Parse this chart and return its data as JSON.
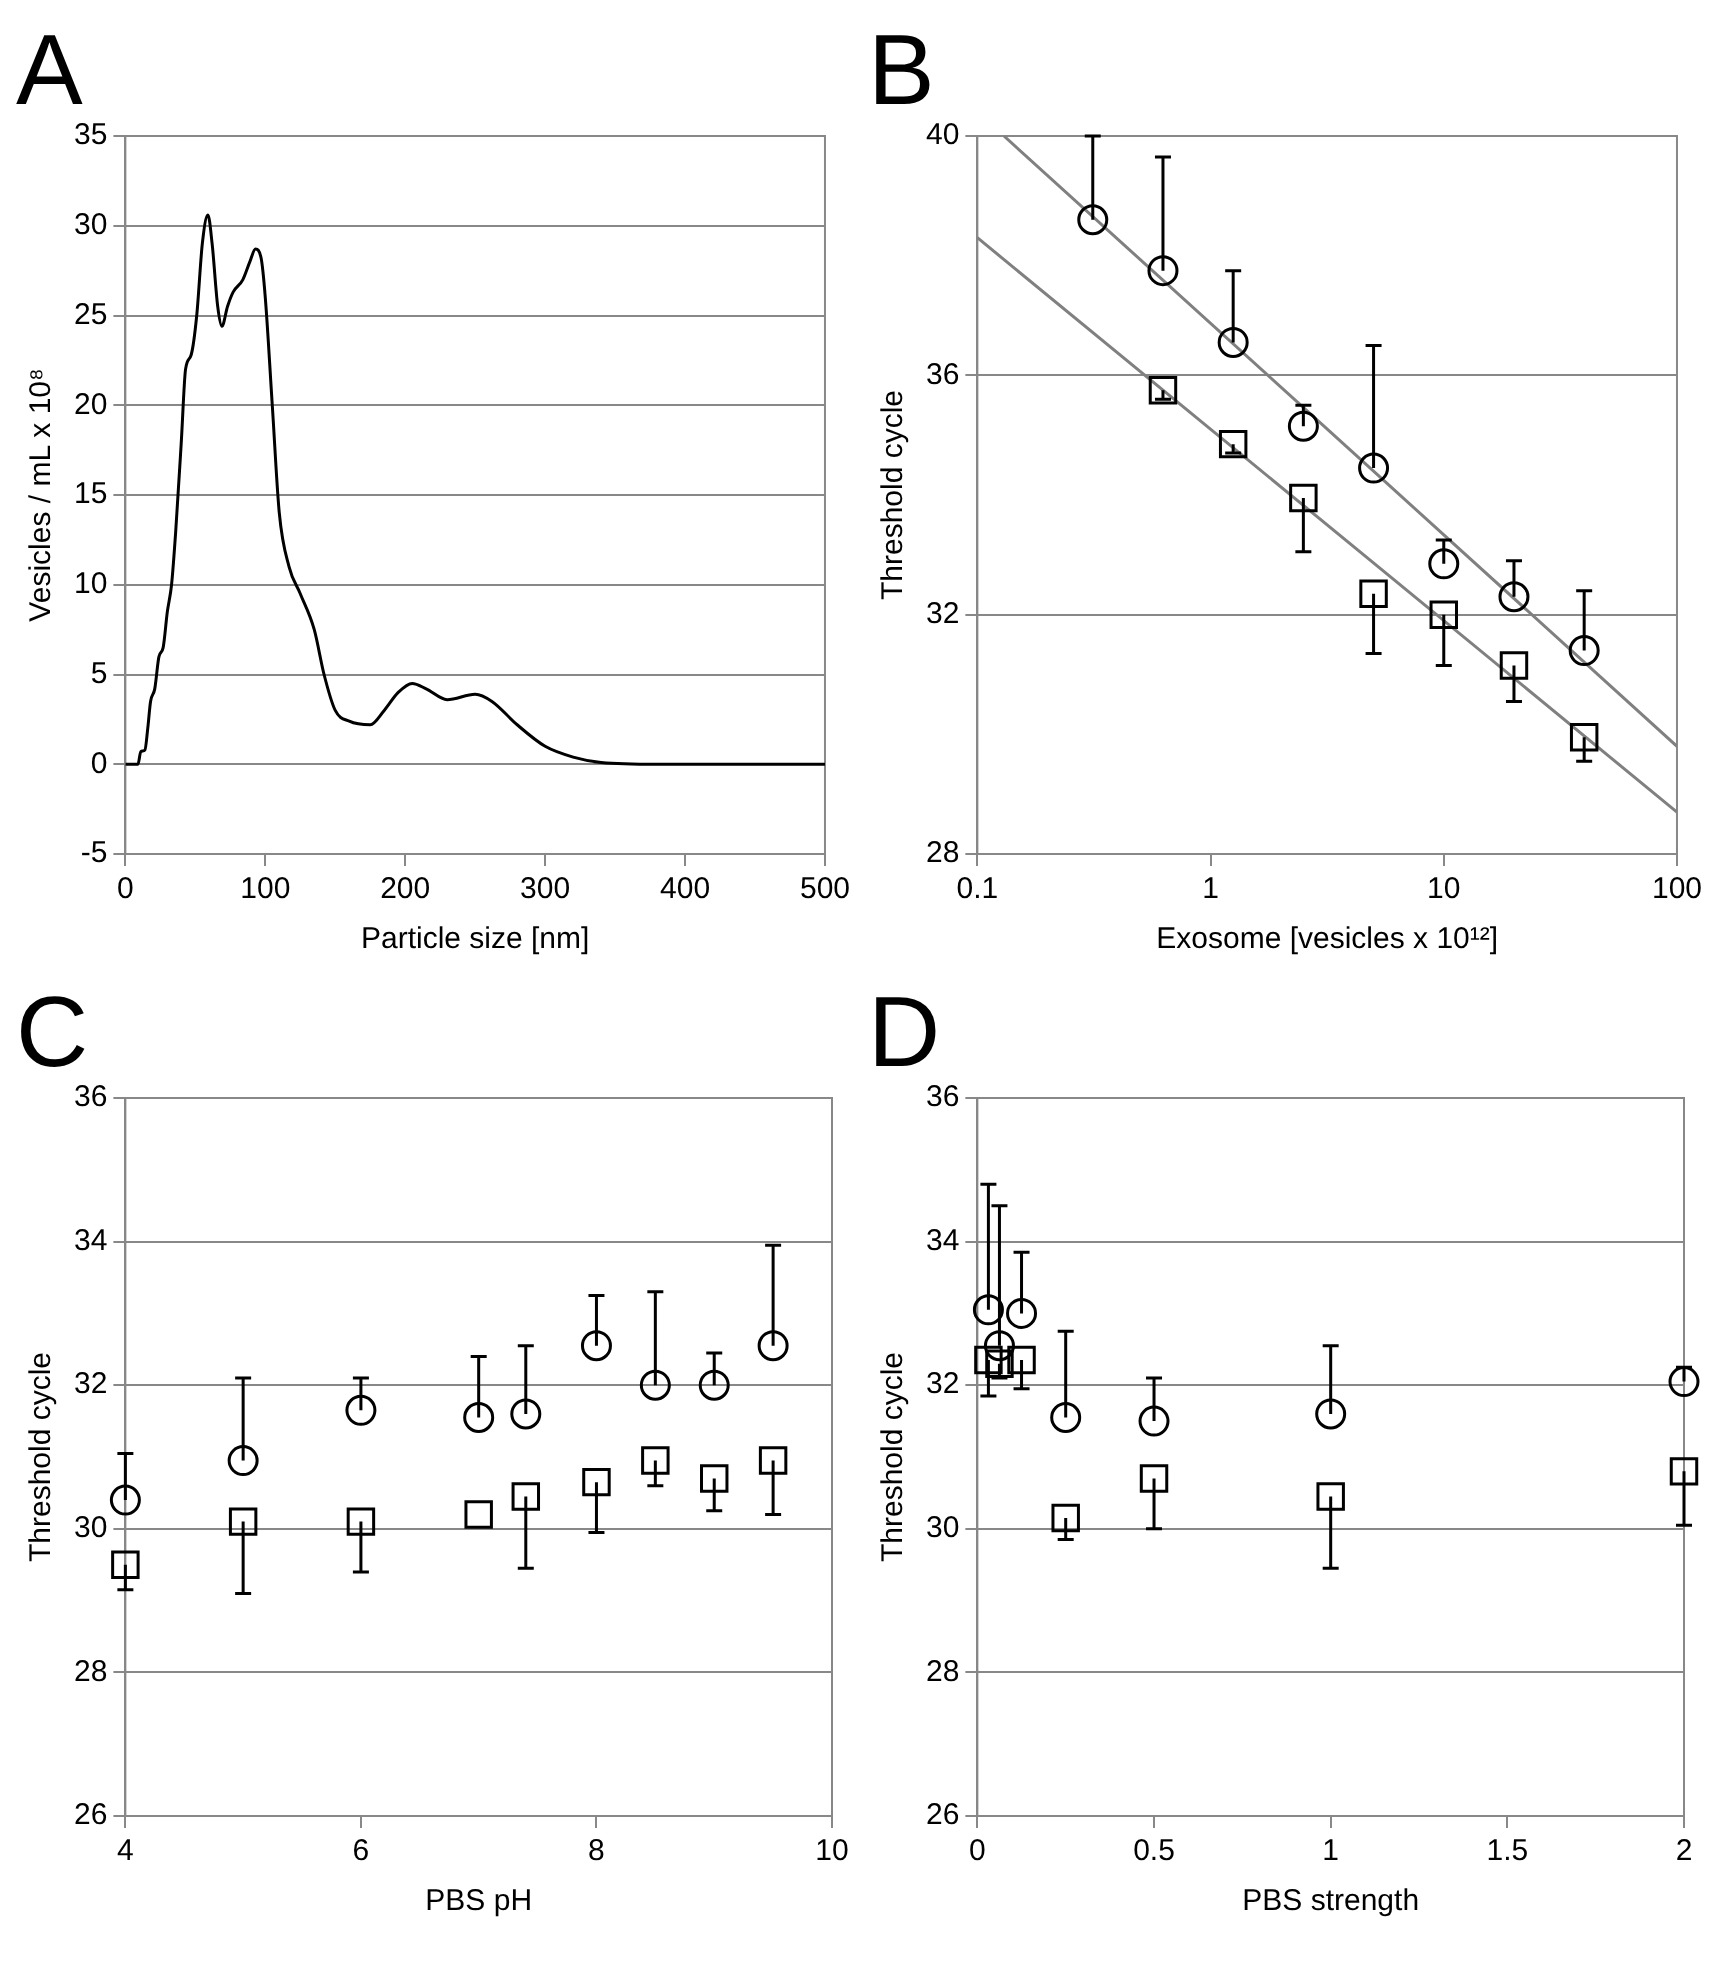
{
  "chart_data": [
    {
      "type": "line",
      "title": "A",
      "xlabel": "Particle size [nm]",
      "ylabel": "Vesicles / mL x 10⁸",
      "xlim": [
        0,
        500
      ],
      "xticks": [
        0,
        100,
        200,
        300,
        400,
        500
      ],
      "ylim": [
        -5,
        35
      ],
      "yticks": [
        -5,
        0,
        5,
        10,
        15,
        20,
        25,
        30,
        35
      ],
      "grid": "y",
      "marker": "none",
      "series": [
        {
          "color": "#000000",
          "x": [
            0,
            9,
            11,
            14,
            16,
            18,
            21,
            24,
            27,
            30,
            33,
            36,
            40,
            43,
            47,
            51,
            55,
            59,
            62,
            66,
            69,
            73,
            77,
            84,
            89,
            93,
            97,
            100,
            105,
            110,
            117,
            125,
            135,
            142,
            150,
            160,
            175,
            185,
            195,
            205,
            215,
            230,
            250,
            262,
            280,
            300,
            320,
            340,
            380,
            500
          ],
          "values": [
            0,
            0,
            0.7,
            0.8,
            2,
            3.5,
            4.2,
            6,
            6.5,
            8.5,
            10,
            13,
            18,
            22,
            22.8,
            25,
            29,
            30.6,
            29,
            25.5,
            24.4,
            25.5,
            26.3,
            27,
            28,
            28.7,
            28.2,
            26,
            20,
            14,
            11,
            9.5,
            7.5,
            5,
            3,
            2.4,
            2.2,
            3,
            4,
            4.5,
            4.2,
            3.6,
            3.9,
            3.5,
            2.2,
            1,
            0.4,
            0.1,
            0,
            0
          ]
        }
      ]
    },
    {
      "type": "scatter",
      "title": "B",
      "xlabel": "Exosome [vesicles x 10¹²]",
      "ylabel": "Threshold cycle",
      "log": "x",
      "xlim": [
        0.1,
        100
      ],
      "xticks": [
        0.1,
        1,
        10,
        100
      ],
      "ylim": [
        28,
        40
      ],
      "yticks": [
        28,
        32,
        36,
        40
      ],
      "grid": "y",
      "series": [
        {
          "color": "#000000",
          "marker": "circle",
          "x": [
            0.3125,
            0.625,
            1.25,
            2.5,
            5,
            10,
            20,
            40
          ],
          "values": [
            38.6,
            37.75,
            36.55,
            35.15,
            34.45,
            32.85,
            32.3,
            31.4
          ],
          "errors": [
            [
              38.6,
              40
            ],
            [
              37.75,
              39.65
            ],
            [
              36.55,
              37.75
            ],
            [
              35.15,
              35.5
            ],
            [
              34.45,
              36.5
            ],
            [
              32.85,
              33.25
            ],
            [
              32.3,
              32.9
            ],
            [
              31.4,
              32.4
            ]
          ]
        },
        {
          "color": "#000000",
          "marker": "square",
          "x": [
            0.625,
            1.25,
            2.5,
            5,
            10,
            20,
            40
          ],
          "values": [
            35.75,
            34.85,
            33.95,
            32.35,
            32,
            31.15,
            29.95
          ],
          "errors": [
            [
              35.6,
              35.75
            ],
            [
              34.7,
              34.85
            ],
            [
              33.05,
              33.95
            ],
            [
              31.35,
              32.35
            ],
            [
              31.15,
              32
            ],
            [
              30.55,
              31.15
            ],
            [
              29.55,
              29.95
            ]
          ]
        },
        {
          "type": "line",
          "color": "#808080",
          "marker": "none",
          "x": [
            0.13,
            100
          ],
          "values": [
            40,
            29.8
          ]
        },
        {
          "type": "line",
          "color": "#808080",
          "marker": "none",
          "x": [
            0.1,
            100
          ],
          "values": [
            38.3,
            28.7
          ]
        }
      ]
    },
    {
      "type": "scatter",
      "title": "C",
      "xlabel": "PBS pH",
      "ylabel": "Threshold cycle",
      "xlim": [
        4,
        10
      ],
      "xticks": [
        4,
        6,
        8,
        10
      ],
      "ylim": [
        26,
        36
      ],
      "yticks": [
        26,
        28,
        30,
        32,
        34,
        36
      ],
      "grid": "y",
      "series": [
        {
          "color": "#000000",
          "marker": "circle",
          "x": [
            4,
            5,
            6,
            7,
            7.4,
            8,
            8.5,
            9,
            9.5
          ],
          "values": [
            30.4,
            30.95,
            31.65,
            31.55,
            31.6,
            32.55,
            32,
            32,
            32.55
          ],
          "errors": [
            [
              30.4,
              31.05
            ],
            [
              30.95,
              32.1
            ],
            [
              31.65,
              32.1
            ],
            [
              31.55,
              32.4
            ],
            [
              31.6,
              32.55
            ],
            [
              32.55,
              33.25
            ],
            [
              32,
              33.3
            ],
            [
              32,
              32.45
            ],
            [
              32.55,
              33.95
            ]
          ]
        },
        {
          "color": "#000000",
          "marker": "square",
          "x": [
            4,
            5,
            6,
            7,
            7.4,
            8,
            8.5,
            9,
            9.5
          ],
          "values": [
            29.5,
            30.1,
            30.1,
            30.2,
            30.45,
            30.65,
            30.95,
            30.7,
            30.95
          ],
          "errors": [
            [
              29.15,
              29.5
            ],
            [
              29.1,
              30.1
            ],
            [
              29.4,
              30.1
            ],
            null,
            [
              29.45,
              30.45
            ],
            [
              29.95,
              30.65
            ],
            [
              30.6,
              30.95
            ],
            [
              30.25,
              30.7
            ],
            [
              30.2,
              30.95
            ]
          ]
        }
      ]
    },
    {
      "type": "scatter",
      "title": "D",
      "xlabel": "PBS strength",
      "ylabel": "Threshold cycle",
      "xlim": [
        0,
        2
      ],
      "xticks": [
        0,
        0.5,
        1,
        1.5,
        2
      ],
      "ylim": [
        26,
        36
      ],
      "yticks": [
        26,
        28,
        30,
        32,
        34,
        36
      ],
      "grid": "y",
      "series": [
        {
          "color": "#000000",
          "marker": "circle",
          "x": [
            0.03125,
            0.0625,
            0.125,
            0.25,
            0.5,
            1,
            2
          ],
          "values": [
            33.05,
            32.55,
            33,
            31.55,
            31.5,
            31.6,
            32.05
          ],
          "errors": [
            [
              33.05,
              34.8
            ],
            [
              32.55,
              34.5
            ],
            [
              33,
              33.85
            ],
            [
              31.55,
              32.75
            ],
            [
              31.5,
              32.1
            ],
            [
              31.6,
              32.55
            ],
            [
              32.05,
              32.25
            ]
          ]
        },
        {
          "color": "#000000",
          "marker": "square",
          "x": [
            0.03125,
            0.0625,
            0.125,
            0.25,
            0.5,
            1,
            2
          ],
          "values": [
            32.35,
            32.3,
            32.35,
            30.15,
            30.7,
            30.45,
            30.8
          ],
          "errors": [
            [
              31.85,
              32.35
            ],
            [
              32.1,
              32.3
            ],
            [
              31.95,
              32.35
            ],
            [
              29.85,
              30.15
            ],
            [
              30,
              30.7
            ],
            [
              29.45,
              30.45
            ],
            [
              30.05,
              30.8
            ]
          ]
        }
      ]
    }
  ]
}
